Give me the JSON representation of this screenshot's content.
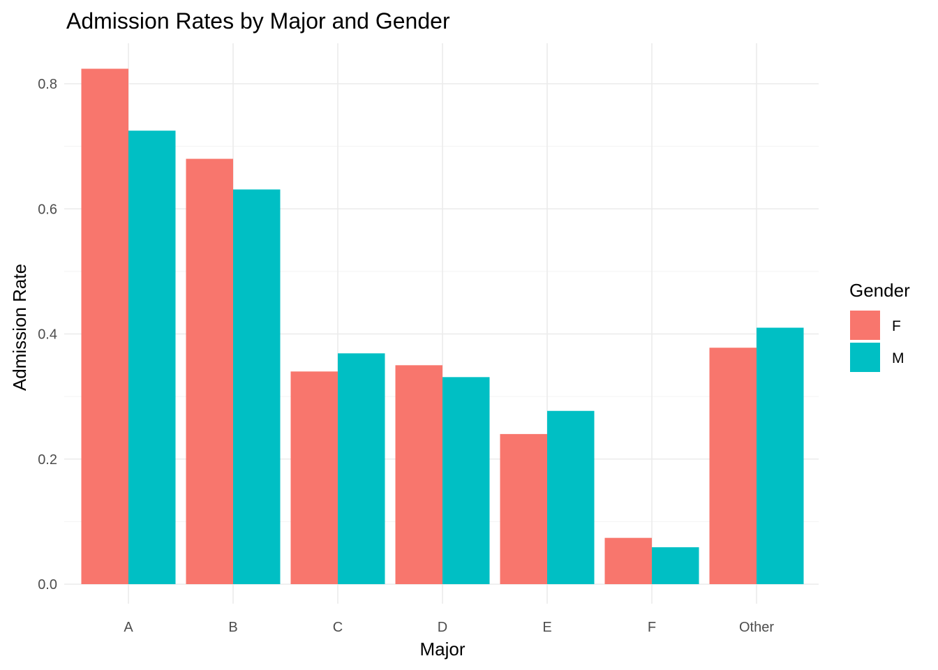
{
  "chart_data": {
    "type": "bar",
    "title": "Admission Rates by Major and Gender",
    "xlabel": "Major",
    "ylabel": "Admission Rate",
    "categories": [
      "A",
      "B",
      "C",
      "D",
      "E",
      "F",
      "Other"
    ],
    "series": [
      {
        "name": "F",
        "color": "#F8766D",
        "values": [
          0.824,
          0.68,
          0.34,
          0.35,
          0.24,
          0.074,
          0.378
        ]
      },
      {
        "name": "M",
        "color": "#00BFC4",
        "values": [
          0.725,
          0.631,
          0.369,
          0.331,
          0.277,
          0.059,
          0.41
        ]
      }
    ],
    "ylim": [
      0,
      0.8
    ],
    "yticks": [
      "0.0",
      "0.2",
      "0.4",
      "0.6",
      "0.8"
    ],
    "ytick_values": [
      0,
      0.2,
      0.4,
      0.6,
      0.8
    ],
    "grid": true,
    "legend": {
      "title": "Gender",
      "position": "right"
    }
  }
}
